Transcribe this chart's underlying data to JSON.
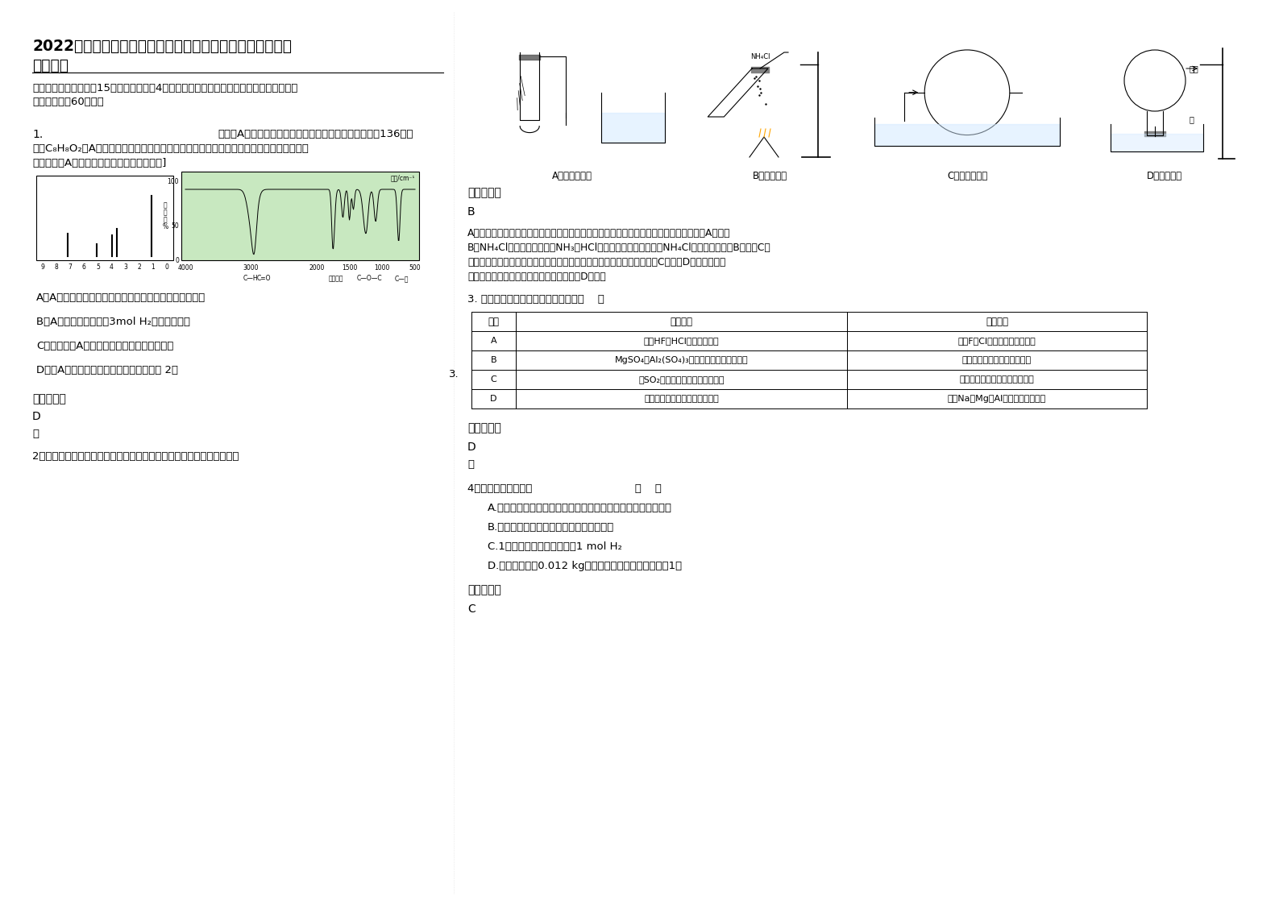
{
  "bg_color": "#ffffff",
  "title_line1": "2022年安徽省芜湖市南陵县第一中学高一化学上学期期末试",
  "title_line2": "题含解析",
  "section_header": "一、单选题（本大题全15个小题，每小题4分。在每小题给出的四个选项中，只有一项符合",
  "section_header2": "题目要求，全60分。）",
  "q1_prefix": "1.",
  "q1_text1": "化合物A经李比希法和质谱法分析得知其相对分子质量为136，分",
  "q1_text2": "子式C₈H₈O₂。A分子中只含一个苯环且苯环上只有一个取代基，其核磁共振氢谱与红外光谱",
  "q1_text3": "如图。关于A的下列说法中，不正确的是科网]",
  "q1_optA": "A．A分子属于酯类化合物，在一定条件下能发生水解反应",
  "q1_optB": "B．A在一定条件下可与3mol H₂发生加成反应",
  "q1_optC": "C．符合题中A分子结构特征的有机物只有一种",
  "q1_optD": "D．与A属于同类化合物的同分异构体只有 2种",
  "ref_ans_label": "参考答案：",
  "q1_ans": "D",
  "q1_sol": "略",
  "q2_prefix": "2．",
  "q2_text": "下列装置用于实验室制备氮气并做喷泉实验，不能达到实验目的的是",
  "q2_optA": "A．检查气密性",
  "q2_optB": "B．制备氮气",
  "q2_optC": "C．吸收氮尾气",
  "q2_optD": "D．喷泉实验",
  "q2_ans": "B",
  "q2_sol1": "A、用手握住试管，试管内气体受热膨胀，插入水中的导气管端有气泡产生，则气密性好，A正确。",
  "q2_sol2": "B、NH₄Cl固体加热分解生成NH₃和HCl，在试管口冷却又结合成NH₄Cl，得不到氮气，B错误。C、",
  "q2_sol3": "氮气易溶于水，容易引起倒吸，故可用球形干燥管代替玻璃管防止倒吸，C正确。D、氮气易溶于",
  "q2_sol4": "水，导致烧瓶内压强减小时可形成喷泉，故D正确。",
  "q3_prefix": "3.",
  "q3_text": "下列实验操作与实验目的相符的是（    ）",
  "q3_headers": [
    "序号",
    "实验操作",
    "实验目的"
  ],
  "q3_rows": [
    [
      "A",
      "测定HF、HCl的燕点、沸点",
      "比较F、Cl的非金属活泼性强弱"
    ],
    [
      "B",
      "MgSO₄、Al₂(SO₄)₃溶液中分别滴加过量氨水",
      "比较镁、铝的金属活泼性强弱"
    ],
    [
      "C",
      "将SO₂气体通入酸性确酸铜溶液中",
      "比较确、铜的非金属活泼性强弱"
    ],
    [
      "D",
      "钓、镁、铝分别入等浓度盐酸中",
      "比较Na、Mg、Al的金属活泼性强弱"
    ]
  ],
  "q3_ans": "D",
  "q3_sol": "略",
  "q4_prefix": "4．",
  "q4_text": "下列说法正确的是",
  "q4_bracket": "（    ）",
  "q4_optA": "A.摩尔是把物质的质量和微观粒子数联系起来的一个基本物理量",
  "q4_optB": "B.摩尔是国际单位制中七个基本物理量之一",
  "q4_optC": "C.1摩尔氨气分子可以表示为1 mol H₂",
  "q4_optD": "D.国际上规定，0.012 kg碳原子所含有的碳原子数目为1摩",
  "q4_ans": "C"
}
